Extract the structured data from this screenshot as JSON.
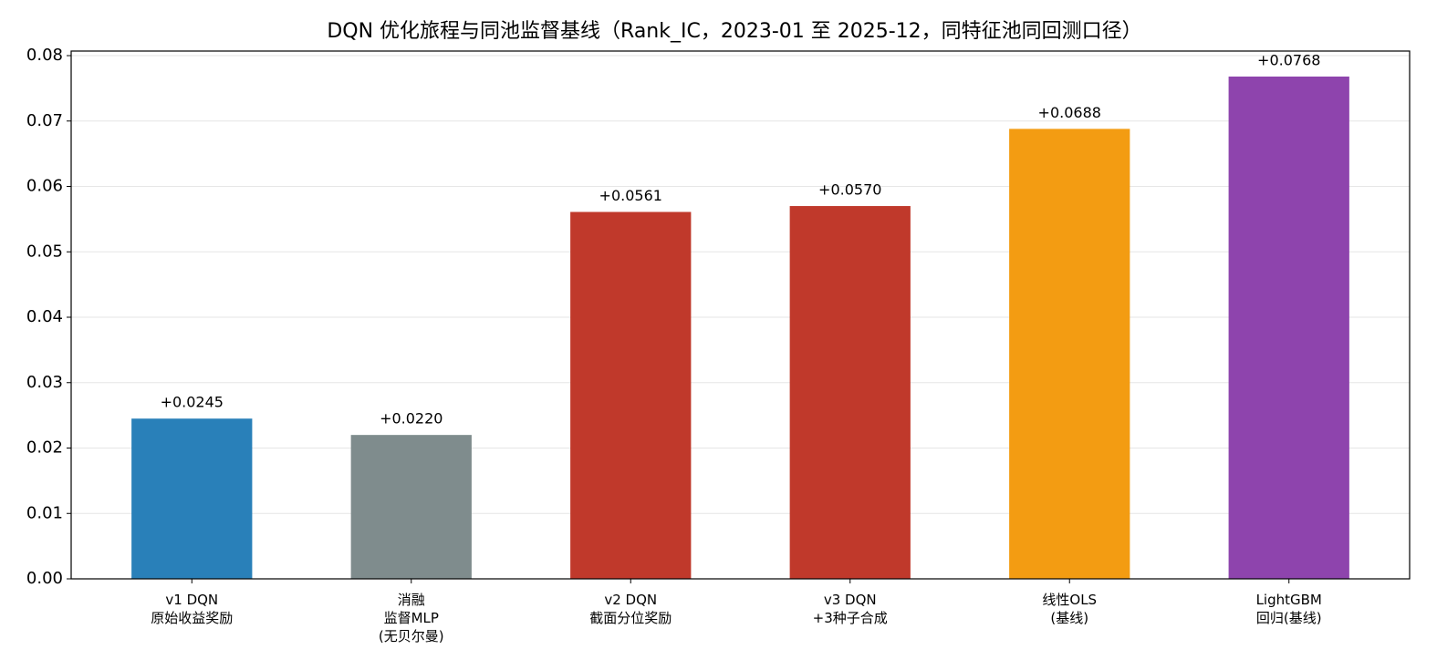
{
  "chart_data": {
    "type": "bar",
    "title": "DQN 优化旅程与同池监督基线（Rank_IC，2023-01 至 2025-12，同特征池同回测口径）",
    "categories": [
      [
        "v1 DQN",
        "原始收益奖励"
      ],
      [
        "消融",
        "监督MLP",
        "(无贝尔曼)"
      ],
      [
        "v2 DQN",
        "截面分位奖励"
      ],
      [
        "v3 DQN",
        "+3种子合成"
      ],
      [
        "线性OLS",
        "(基线)"
      ],
      [
        "LightGBM",
        "回归(基线)"
      ]
    ],
    "values": [
      0.0245,
      0.022,
      0.0561,
      0.057,
      0.0688,
      0.0768
    ],
    "value_labels": [
      "+0.0245",
      "+0.0220",
      "+0.0561",
      "+0.0570",
      "+0.0688",
      "+0.0768"
    ],
    "colors": [
      "#2980b9",
      "#7f8c8d",
      "#c0392b",
      "#c0392b",
      "#f39c12",
      "#8e44ad"
    ],
    "ylim": [
      0,
      0.0807
    ],
    "yticks": [
      {
        "value": 0,
        "label": "0.00"
      },
      {
        "value": 0.01,
        "label": "0.01"
      },
      {
        "value": 0.02,
        "label": "0.02"
      },
      {
        "value": 0.03,
        "label": "0.03"
      },
      {
        "value": 0.04,
        "label": "0.04"
      },
      {
        "value": 0.05,
        "label": "0.05"
      },
      {
        "value": 0.06,
        "label": "0.06"
      },
      {
        "value": 0.07,
        "label": "0.07"
      },
      {
        "value": 0.08,
        "label": "0.08"
      }
    ],
    "grid": true
  }
}
